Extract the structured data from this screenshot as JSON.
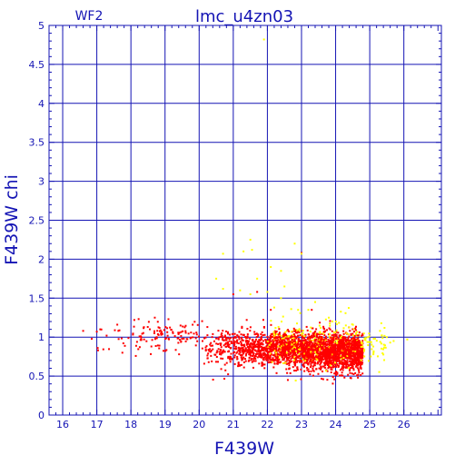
{
  "chart_data": {
    "type": "scatter",
    "title": "lmc_u4zn03",
    "panel_label": "WF2",
    "xlabel": "F439W",
    "ylabel": "F439W chi",
    "xlim": [
      15.6,
      27.1
    ],
    "ylim": [
      0,
      5
    ],
    "grid": true,
    "x_ticks": [
      16,
      17,
      18,
      19,
      20,
      21,
      22,
      23,
      24,
      25,
      26
    ],
    "y_ticks": [
      0,
      0.5,
      1,
      1.5,
      2,
      2.5,
      3,
      3.5,
      4,
      4.5,
      5
    ],
    "x_tick_labels": [
      "16",
      "17",
      "18",
      "19",
      "20",
      "21",
      "22",
      "23",
      "24",
      "25",
      "26"
    ],
    "y_tick_labels": [
      "0",
      "0.5",
      "1",
      "1.5",
      "2",
      "2.5",
      "3",
      "3.5",
      "4",
      "4.5",
      "5"
    ],
    "colors": {
      "axis": "#1414b4",
      "grid": "#1414b4",
      "series_red": "#ff0000",
      "series_yellow": "#ffff00"
    },
    "series": [
      {
        "color": "#ff0000",
        "distribution": {
          "main_cluster": {
            "x_range": [
              20.0,
              24.8
            ],
            "y_center": 0.88,
            "y_spread": 0.12
          },
          "faint_tail": {
            "x_range": [
              16.6,
              20.0
            ],
            "y_center": 1.02,
            "y_spread": 0.1
          }
        },
        "points": [
          {
            "x": 16.6,
            "y": 1.08
          },
          {
            "x": 17.0,
            "y": 1.07
          },
          {
            "x": 17.1,
            "y": 1.1
          },
          {
            "x": 17.6,
            "y": 1.16
          },
          {
            "x": 17.75,
            "y": 0.8
          },
          {
            "x": 18.1,
            "y": 1.22
          },
          {
            "x": 18.3,
            "y": 1.0
          },
          {
            "x": 18.6,
            "y": 0.88
          },
          {
            "x": 18.7,
            "y": 1.25
          },
          {
            "x": 19.1,
            "y": 1.23
          },
          {
            "x": 21.7,
            "y": 1.58
          },
          {
            "x": 22.1,
            "y": 1.35
          },
          {
            "x": 23.0,
            "y": 2.08
          },
          {
            "x": 22.6,
            "y": 0.45
          },
          {
            "x": 24.6,
            "y": 0.62
          },
          {
            "x": 21.0,
            "y": 1.55
          },
          {
            "x": 23.3,
            "y": 1.35
          }
        ]
      },
      {
        "color": "#ffff00",
        "distribution": {
          "cluster": {
            "x_range": [
              22.0,
              25.5
            ],
            "y_center": 0.95,
            "y_spread": 0.15
          }
        },
        "points": [
          {
            "x": 21.9,
            "y": 4.82
          },
          {
            "x": 21.5,
            "y": 2.25
          },
          {
            "x": 21.55,
            "y": 2.12
          },
          {
            "x": 20.7,
            "y": 2.07
          },
          {
            "x": 21.3,
            "y": 2.1
          },
          {
            "x": 22.8,
            "y": 2.2
          },
          {
            "x": 23.0,
            "y": 2.07
          },
          {
            "x": 21.7,
            "y": 1.75
          },
          {
            "x": 22.1,
            "y": 1.9
          },
          {
            "x": 22.4,
            "y": 1.85
          },
          {
            "x": 20.5,
            "y": 1.75
          },
          {
            "x": 20.7,
            "y": 1.62
          },
          {
            "x": 21.2,
            "y": 1.6
          },
          {
            "x": 21.5,
            "y": 1.55
          },
          {
            "x": 22.0,
            "y": 1.58
          },
          {
            "x": 22.4,
            "y": 1.5
          },
          {
            "x": 22.5,
            "y": 1.65
          },
          {
            "x": 23.4,
            "y": 1.45
          },
          {
            "x": 23.2,
            "y": 1.35
          },
          {
            "x": 22.9,
            "y": 1.35
          },
          {
            "x": 22.2,
            "y": 1.38
          },
          {
            "x": 23.8,
            "y": 1.25
          },
          {
            "x": 24.3,
            "y": 1.15
          },
          {
            "x": 24.6,
            "y": 1.05
          },
          {
            "x": 25.3,
            "y": 1.08
          },
          {
            "x": 25.5,
            "y": 1.0
          },
          {
            "x": 25.7,
            "y": 0.95
          },
          {
            "x": 25.6,
            "y": 0.93
          },
          {
            "x": 26.1,
            "y": 0.97
          }
        ]
      }
    ]
  }
}
